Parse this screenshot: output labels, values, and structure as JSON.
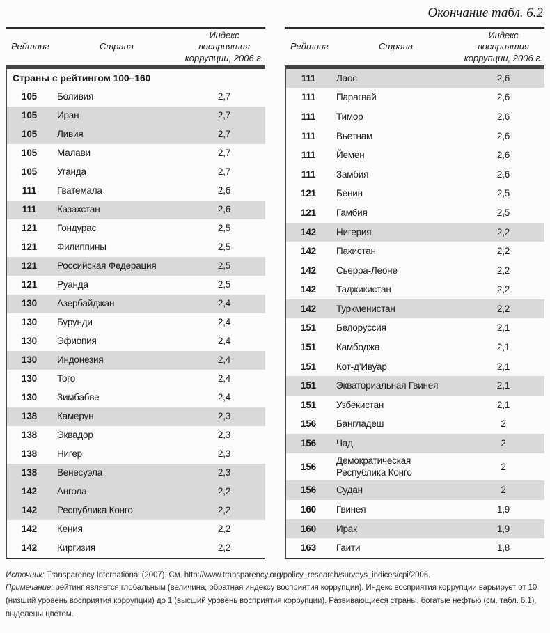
{
  "page": {
    "title": "Окончание табл. 6.2"
  },
  "colors": {
    "row_shaded": "#d9d9d9"
  },
  "table_header": {
    "rating": "Рейтинг",
    "country": "Страна",
    "index": "Индекс восприятия коррупции, 2006 г."
  },
  "tables": [
    {
      "group_header": "Страны с рейтингом 100–160",
      "rows": [
        {
          "rating": "105",
          "country": "Боливия",
          "index": "2,7",
          "shaded": false
        },
        {
          "rating": "105",
          "country": "Иран",
          "index": "2,7",
          "shaded": true
        },
        {
          "rating": "105",
          "country": "Ливия",
          "index": "2,7",
          "shaded": true
        },
        {
          "rating": "105",
          "country": "Малави",
          "index": "2,7",
          "shaded": false
        },
        {
          "rating": "105",
          "country": "Уганда",
          "index": "2,7",
          "shaded": false
        },
        {
          "rating": "111",
          "country": "Гватемала",
          "index": "2,6",
          "shaded": false
        },
        {
          "rating": "111",
          "country": "Казахстан",
          "index": "2,6",
          "shaded": true
        },
        {
          "rating": "121",
          "country": "Гондурас",
          "index": "2,5",
          "shaded": false
        },
        {
          "rating": "121",
          "country": "Филиппины",
          "index": "2,5",
          "shaded": false
        },
        {
          "rating": "121",
          "country": "Российская Федерация",
          "index": "2,5",
          "shaded": true
        },
        {
          "rating": "121",
          "country": "Руанда",
          "index": "2,5",
          "shaded": false
        },
        {
          "rating": "130",
          "country": "Азербайджан",
          "index": "2,4",
          "shaded": true
        },
        {
          "rating": "130",
          "country": "Бурунди",
          "index": "2,4",
          "shaded": false
        },
        {
          "rating": "130",
          "country": "Эфиопия",
          "index": "2,4",
          "shaded": false
        },
        {
          "rating": "130",
          "country": "Индонезия",
          "index": "2,4",
          "shaded": true
        },
        {
          "rating": "130",
          "country": "Того",
          "index": "2,4",
          "shaded": false
        },
        {
          "rating": "130",
          "country": "Зимбабве",
          "index": "2,4",
          "shaded": false
        },
        {
          "rating": "138",
          "country": "Камерун",
          "index": "2,3",
          "shaded": true
        },
        {
          "rating": "138",
          "country": "Эквадор",
          "index": "2,3",
          "shaded": false
        },
        {
          "rating": "138",
          "country": "Нигер",
          "index": "2,3",
          "shaded": false
        },
        {
          "rating": "138",
          "country": "Венесуэла",
          "index": "2,3",
          "shaded": true
        },
        {
          "rating": "142",
          "country": "Ангола",
          "index": "2,2",
          "shaded": true
        },
        {
          "rating": "142",
          "country": "Республика Конго",
          "index": "2,2",
          "shaded": true
        },
        {
          "rating": "142",
          "country": "Кения",
          "index": "2,2",
          "shaded": false
        },
        {
          "rating": "142",
          "country": "Киргизия",
          "index": "2,2",
          "shaded": false
        }
      ]
    },
    {
      "rows": [
        {
          "rating": "111",
          "country": "Лаос",
          "index": "2,6",
          "shaded": true
        },
        {
          "rating": "111",
          "country": "Парагвай",
          "index": "2,6",
          "shaded": false
        },
        {
          "rating": "111",
          "country": "Тимор",
          "index": "2,6",
          "shaded": false
        },
        {
          "rating": "111",
          "country": "Вьетнам",
          "index": "2,6",
          "shaded": false
        },
        {
          "rating": "111",
          "country": "Йемен",
          "index": "2,6",
          "shaded": false
        },
        {
          "rating": "111",
          "country": "Замбия",
          "index": "2,6",
          "shaded": false
        },
        {
          "rating": "121",
          "country": "Бенин",
          "index": "2,5",
          "shaded": false
        },
        {
          "rating": "121",
          "country": "Гамбия",
          "index": "2,5",
          "shaded": false
        },
        {
          "rating": "142",
          "country": "Нигерия",
          "index": "2,2",
          "shaded": true
        },
        {
          "rating": "142",
          "country": "Пакистан",
          "index": "2,2",
          "shaded": false
        },
        {
          "rating": "142",
          "country": "Сьерра-Леоне",
          "index": "2,2",
          "shaded": false
        },
        {
          "rating": "142",
          "country": "Таджикистан",
          "index": "2,2",
          "shaded": false
        },
        {
          "rating": "142",
          "country": "Туркменистан",
          "index": "2,2",
          "shaded": true
        },
        {
          "rating": "151",
          "country": "Белоруссия",
          "index": "2,1",
          "shaded": false
        },
        {
          "rating": "151",
          "country": "Камбоджа",
          "index": "2,1",
          "shaded": false
        },
        {
          "rating": "151",
          "country": "Кот-д’Ивуар",
          "index": "2,1",
          "shaded": false
        },
        {
          "rating": "151",
          "country": "Экваториальная Гвинея",
          "index": "2,1",
          "shaded": true
        },
        {
          "rating": "151",
          "country": "Узбекистан",
          "index": "2,1",
          "shaded": false
        },
        {
          "rating": "156",
          "country": "Бангладеш",
          "index": "2",
          "shaded": false
        },
        {
          "rating": "156",
          "country": "Чад",
          "index": "2",
          "shaded": true
        },
        {
          "rating": "156",
          "country": "Демократическая Республика Конго",
          "index": "2",
          "shaded": false
        },
        {
          "rating": "156",
          "country": "Судан",
          "index": "2",
          "shaded": true
        },
        {
          "rating": "160",
          "country": "Гвинея",
          "index": "1,9",
          "shaded": false
        },
        {
          "rating": "160",
          "country": "Ирак",
          "index": "1,9",
          "shaded": true
        },
        {
          "rating": "163",
          "country": "Гаити",
          "index": "1,8",
          "shaded": false
        }
      ]
    }
  ],
  "footnotes": {
    "source_label": "Источник:",
    "source_text": " Transparency International (2007). См. http://www.transparency.org/policy_research/surveys_indices/cpi/2006.",
    "note_label": "Примечание:",
    "note_text": " рейтинг является глобальным (величина, обратная индексу восприятия коррупции). Индекс восприятия коррупции варьирует от 10 (низший уровень восприятия коррупции) до 1 (высший уровень восприятия коррупции). Развивающиеся страны, богатые нефтью (см. табл. 6.1), выделены цветом."
  }
}
